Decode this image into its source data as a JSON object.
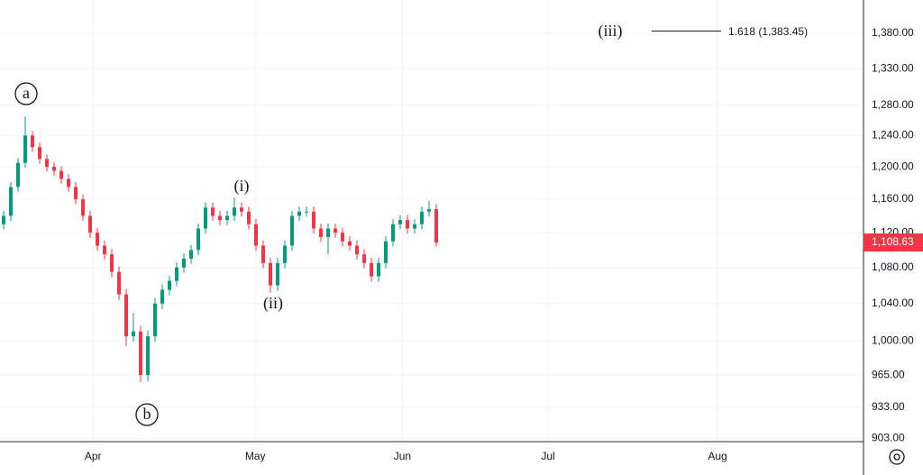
{
  "chart_data": {
    "type": "candlestick",
    "x": [
      0,
      1,
      2,
      3,
      4,
      5,
      6,
      7,
      8,
      9,
      10,
      11,
      12,
      13,
      14,
      15,
      16,
      17,
      18,
      19,
      20,
      21,
      22,
      23,
      24,
      25,
      26,
      27,
      28,
      29,
      30,
      31,
      32,
      33,
      34,
      35,
      36,
      37,
      38,
      39,
      40,
      41,
      42,
      43,
      44,
      45,
      46,
      47,
      48,
      49,
      50,
      51,
      52,
      53,
      54,
      55,
      56,
      57,
      58,
      59,
      60
    ],
    "open": [
      1130,
      1140,
      1175,
      1205,
      1240,
      1225,
      1210,
      1200,
      1195,
      1185,
      1175,
      1160,
      1140,
      1120,
      1105,
      1095,
      1075,
      1050,
      1005,
      1010,
      965,
      1005,
      1040,
      1055,
      1065,
      1080,
      1090,
      1100,
      1125,
      1150,
      1140,
      1135,
      1140,
      1150,
      1145,
      1130,
      1105,
      1085,
      1060,
      1085,
      1105,
      1140,
      1145,
      1145,
      1125,
      1115,
      1125,
      1120,
      1110,
      1105,
      1095,
      1085,
      1070,
      1085,
      1110,
      1130,
      1135,
      1125,
      1130,
      1145,
      1148
    ],
    "high": [
      1146,
      1181,
      1211,
      1265,
      1246,
      1231,
      1216,
      1206,
      1201,
      1191,
      1181,
      1166,
      1146,
      1126,
      1111,
      1101,
      1081,
      1056,
      1030,
      1016,
      1011,
      1046,
      1061,
      1071,
      1086,
      1096,
      1106,
      1131,
      1156,
      1156,
      1146,
      1146,
      1162,
      1156,
      1151,
      1136,
      1111,
      1091,
      1091,
      1111,
      1146,
      1151,
      1151,
      1151,
      1131,
      1131,
      1131,
      1126,
      1116,
      1111,
      1101,
      1091,
      1091,
      1116,
      1136,
      1141,
      1141,
      1136,
      1151,
      1158,
      1154
    ],
    "low": [
      1124,
      1134,
      1169,
      1199,
      1219,
      1204,
      1194,
      1189,
      1179,
      1169,
      1154,
      1134,
      1114,
      1099,
      1089,
      1069,
      1044,
      995,
      999,
      958,
      959,
      999,
      1034,
      1049,
      1059,
      1074,
      1084,
      1094,
      1119,
      1134,
      1129,
      1129,
      1134,
      1139,
      1124,
      1099,
      1079,
      1052,
      1054,
      1079,
      1099,
      1134,
      1139,
      1119,
      1109,
      1095,
      1114,
      1104,
      1099,
      1089,
      1079,
      1064,
      1064,
      1079,
      1104,
      1124,
      1119,
      1119,
      1124,
      1139,
      1104
    ],
    "close": [
      1140,
      1175,
      1205,
      1240,
      1225,
      1210,
      1200,
      1195,
      1185,
      1175,
      1160,
      1140,
      1120,
      1105,
      1095,
      1075,
      1050,
      1005,
      1010,
      965,
      1005,
      1040,
      1055,
      1065,
      1080,
      1090,
      1100,
      1125,
      1150,
      1140,
      1135,
      1140,
      1150,
      1145,
      1130,
      1105,
      1085,
      1060,
      1085,
      1105,
      1140,
      1145,
      1145,
      1125,
      1115,
      1125,
      1120,
      1110,
      1105,
      1095,
      1085,
      1070,
      1085,
      1110,
      1130,
      1135,
      1125,
      1130,
      1145,
      1148,
      1108.63
    ],
    "up_color": "#089981",
    "down_color": "#f23645",
    "xlim": [
      -0.5,
      119.25
    ],
    "xticks": [
      {
        "value": 12.4,
        "label": "Apr"
      },
      {
        "value": 34.9,
        "label": "May"
      },
      {
        "value": 55.3,
        "label": "Jun"
      },
      {
        "value": 75.5,
        "label": "Jul"
      },
      {
        "value": 99,
        "label": "Aug"
      }
    ],
    "ylim": [
      900,
      1429
    ],
    "log_scale": true,
    "grid": true,
    "yticks": [
      {
        "value": 1380,
        "label": "1,380.00"
      },
      {
        "value": 1330,
        "label": "1,330.00"
      },
      {
        "value": 1280,
        "label": "1,280.00"
      },
      {
        "value": 1240,
        "label": "1,240.00"
      },
      {
        "value": 1200,
        "label": "1,200.00"
      },
      {
        "value": 1160,
        "label": "1,160.00"
      },
      {
        "value": 1120,
        "label": "1,120.00"
      },
      {
        "value": 1080,
        "label": "1,080.00"
      },
      {
        "value": 1040,
        "label": "1,040.00"
      },
      {
        "value": 1000,
        "label": "1,000.00"
      },
      {
        "value": 965,
        "label": "965.00"
      },
      {
        "value": 933,
        "label": "933.00"
      },
      {
        "value": 903,
        "label": "903.00"
      }
    ],
    "last_price": {
      "value": 1108.63,
      "label": "1,108.63"
    },
    "annotations": [
      "a",
      "b",
      "(i)",
      "(ii)"
    ],
    "fib_level": {
      "wave": "(iii)",
      "label": "1.618 (1,383.45)",
      "value": 1383.45
    }
  }
}
